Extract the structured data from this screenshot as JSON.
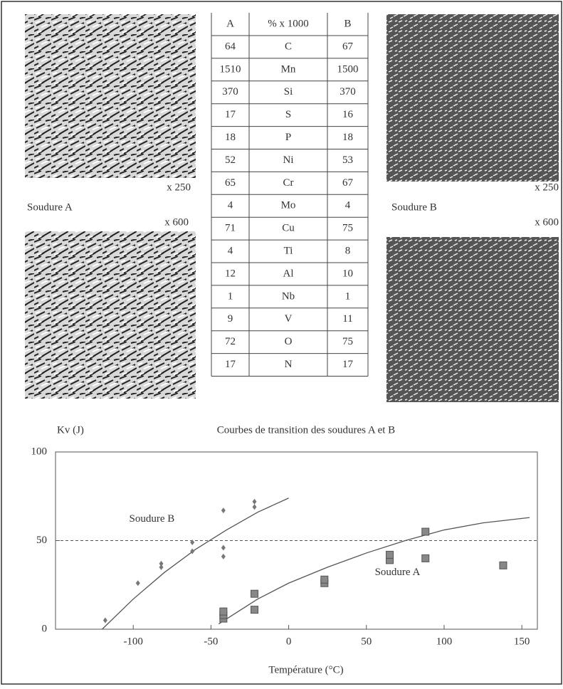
{
  "micrographs": {
    "left_mag_top": "x 250",
    "left_label": "Soudure A",
    "left_mag_bottom": "x 600",
    "right_mag_top": "x 250",
    "right_label": "Soudure B",
    "right_mag_bottom": "x 600"
  },
  "table": {
    "header": [
      "A",
      "% x 1000",
      "B"
    ],
    "rows": [
      [
        "64",
        "C",
        "67"
      ],
      [
        "1510",
        "Mn",
        "1500"
      ],
      [
        "370",
        "Si",
        "370"
      ],
      [
        "17",
        "S",
        "16"
      ],
      [
        "18",
        "P",
        "18"
      ],
      [
        "52",
        "Ni",
        "53"
      ],
      [
        "65",
        "Cr",
        "67"
      ],
      [
        "4",
        "Mo",
        "4"
      ],
      [
        "71",
        "Cu",
        "75"
      ],
      [
        "4",
        "Ti",
        "8"
      ],
      [
        "12",
        "Al",
        "10"
      ],
      [
        "1",
        "Nb",
        "1"
      ],
      [
        "9",
        "V",
        "11"
      ],
      [
        "72",
        "O",
        "75"
      ],
      [
        "17",
        "N",
        "17"
      ]
    ]
  },
  "chart_data": {
    "type": "scatter",
    "title": "Courbes de transition des soudures A et B",
    "y_label": "Kv (J)",
    "x_label": "Température (°C)",
    "xlim": [
      -150,
      160
    ],
    "xticks": [
      -100,
      -50,
      0,
      50,
      100,
      150
    ],
    "ylim": [
      0,
      100
    ],
    "yticks": [
      0,
      50,
      100
    ],
    "reference_line": 50,
    "series": [
      {
        "name": "Soudure B",
        "marker": "diamond",
        "color": "#777777",
        "x": [
          -118,
          -97,
          -82,
          -82,
          -62,
          -62,
          -42,
          -42,
          -42,
          -22,
          -22
        ],
        "values": [
          5,
          26,
          35,
          37,
          44,
          49,
          67,
          46,
          41,
          72,
          69
        ],
        "fit_x": [
          -120,
          -100,
          -80,
          -60,
          -40,
          -20,
          0
        ],
        "fit_y": [
          0,
          17,
          32,
          45,
          56,
          66,
          74
        ]
      },
      {
        "name": "Soudure A",
        "marker": "square",
        "color": "#888888",
        "x": [
          -42,
          -42,
          -42,
          -22,
          -22,
          23,
          23,
          65,
          65,
          88,
          88,
          138
        ],
        "values": [
          6,
          8,
          10,
          11,
          20,
          26,
          28,
          39,
          42,
          55,
          40,
          36
        ],
        "fit_x": [
          -45,
          -20,
          0,
          25,
          50,
          75,
          100,
          125,
          155
        ],
        "fit_y": [
          3,
          17,
          26,
          35,
          43,
          50,
          56,
          60,
          63
        ]
      }
    ]
  }
}
